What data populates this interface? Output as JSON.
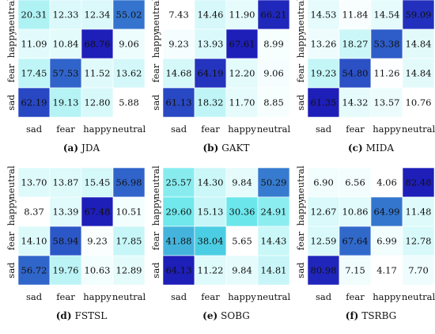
{
  "figure": {
    "row_labels": [
      "neutral",
      "happy",
      "fear",
      "sad"
    ],
    "col_labels": [
      "sad",
      "fear",
      "happy",
      "neutral"
    ]
  },
  "colors": {
    "low": "#ffffff",
    "mid": "#50e3e8",
    "high": "#1e1eb9",
    "grid": "#ffffff",
    "text": "#111111"
  },
  "chart_data": [
    {
      "type": "heatmap",
      "caption_letter": "(a)",
      "caption_name": "JDA",
      "rows": [
        "neutral",
        "happy",
        "fear",
        "sad"
      ],
      "columns": [
        "sad",
        "fear",
        "happy",
        "neutral"
      ],
      "values": [
        [
          20.31,
          12.33,
          12.34,
          55.02
        ],
        [
          11.09,
          10.84,
          68.76,
          9.06
        ],
        [
          17.45,
          57.53,
          11.52,
          13.62
        ],
        [
          62.19,
          19.13,
          12.8,
          5.88
        ]
      ],
      "labels": [
        [
          "20.31",
          "12.33",
          "12.34",
          "55.02"
        ],
        [
          "11.09",
          "10.84",
          "68.76",
          "9.06"
        ],
        [
          "17.45",
          "57.53",
          "11.52",
          "13.62"
        ],
        [
          "62.19",
          "19.13",
          "12.80",
          "5.88"
        ]
      ]
    },
    {
      "type": "heatmap",
      "caption_letter": "(b)",
      "caption_name": "GAKT",
      "rows": [
        "neutral",
        "happy",
        "fear",
        "sad"
      ],
      "columns": [
        "sad",
        "fear",
        "happy",
        "neutral"
      ],
      "values": [
        [
          7.43,
          14.46,
          11.9,
          66.21
        ],
        [
          9.23,
          13.93,
          67.61,
          8.99
        ],
        [
          14.68,
          64.19,
          12.2,
          9.06
        ],
        [
          61.13,
          18.32,
          11.7,
          8.85
        ]
      ],
      "labels": [
        [
          "7.43",
          "14.46",
          "11.90",
          "66.21"
        ],
        [
          "9.23",
          "13.93",
          "67.61",
          "8.99"
        ],
        [
          "14.68",
          "64.19",
          "12.20",
          "9.06"
        ],
        [
          "61.13",
          "18.32",
          "11.70",
          "8.85"
        ]
      ]
    },
    {
      "type": "heatmap",
      "caption_letter": "(c)",
      "caption_name": "MIDA",
      "rows": [
        "neutral",
        "happy",
        "fear",
        "sad"
      ],
      "columns": [
        "sad",
        "fear",
        "happy",
        "neutral"
      ],
      "values": [
        [
          14.53,
          11.84,
          14.54,
          59.09
        ],
        [
          13.26,
          18.27,
          53.38,
          14.84
        ],
        [
          19.23,
          54.8,
          11.26,
          14.84
        ],
        [
          61.35,
          14.32,
          13.57,
          10.76
        ]
      ],
      "labels": [
        [
          "14.53",
          "11.84",
          "14.54",
          "59.09"
        ],
        [
          "13.26",
          "18.27",
          "53.38",
          "14.84"
        ],
        [
          "19.23",
          "54.80",
          "11.26",
          "14.84"
        ],
        [
          "61.35",
          "14.32",
          "13.57",
          "10.76"
        ]
      ]
    },
    {
      "type": "heatmap",
      "caption_letter": "(d)",
      "caption_name": "FSTSL",
      "rows": [
        "neutral",
        "happy",
        "fear",
        "sad"
      ],
      "columns": [
        "sad",
        "fear",
        "happy",
        "neutral"
      ],
      "values": [
        [
          13.7,
          13.87,
          15.45,
          56.98
        ],
        [
          8.37,
          13.39,
          67.48,
          10.51
        ],
        [
          14.1,
          58.94,
          9.23,
          17.85
        ],
        [
          56.72,
          19.76,
          10.63,
          12.89
        ]
      ],
      "labels": [
        [
          "13.70",
          "13.87",
          "15.45",
          "56.98"
        ],
        [
          "8.37",
          "13.39",
          "67.48",
          "10.51"
        ],
        [
          "14.10",
          "58.94",
          "9.23",
          "17.85"
        ],
        [
          "56.72",
          "19.76",
          "10.63",
          "12.89"
        ]
      ]
    },
    {
      "type": "heatmap",
      "caption_letter": "(e)",
      "caption_name": "SOBG",
      "rows": [
        "neutral",
        "happy",
        "fear",
        "sad"
      ],
      "columns": [
        "sad",
        "fear",
        "happy",
        "neutral"
      ],
      "values": [
        [
          25.57,
          14.3,
          9.84,
          50.29
        ],
        [
          29.6,
          15.13,
          30.36,
          24.91
        ],
        [
          41.88,
          38.04,
          5.65,
          14.43
        ],
        [
          64.13,
          11.22,
          9.84,
          14.81
        ]
      ],
      "labels": [
        [
          "25.57",
          "14.30",
          "9.84",
          "50.29"
        ],
        [
          "29.60",
          "15.13",
          "30.36",
          "24.91"
        ],
        [
          "41.88",
          "38.04",
          "5.65",
          "14.43"
        ],
        [
          "64.13",
          "11.22",
          "9.84",
          "14.81"
        ]
      ]
    },
    {
      "type": "heatmap",
      "caption_letter": "(f)",
      "caption_name": "TSRBG",
      "rows": [
        "neutral",
        "happy",
        "fear",
        "sad"
      ],
      "columns": [
        "sad",
        "fear",
        "happy",
        "neutral"
      ],
      "values": [
        [
          6.9,
          6.56,
          4.06,
          82.48
        ],
        [
          12.67,
          10.86,
          64.99,
          11.48
        ],
        [
          12.59,
          67.64,
          6.99,
          12.78
        ],
        [
          80.98,
          7.15,
          4.17,
          7.7
        ]
      ],
      "labels": [
        [
          "6.90",
          "6.56",
          "4.06",
          "82.48"
        ],
        [
          "12.67",
          "10.86",
          "64.99",
          "11.48"
        ],
        [
          "12.59",
          "67.64",
          "6.99",
          "12.78"
        ],
        [
          "80.98",
          "7.15",
          "4.17",
          "7.70"
        ]
      ]
    }
  ]
}
